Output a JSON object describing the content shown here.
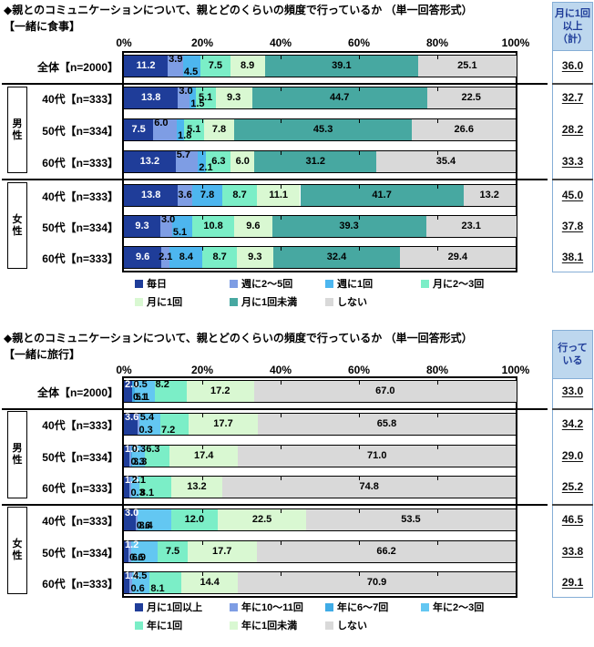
{
  "charts": [
    {
      "title": "◆親とのコミュニケーションについて、親とどのくらいの頻度で行っているか （単一回答形式）",
      "subtitle": "【一緒に食事】",
      "axis": {
        "ticks": [
          "0%",
          "20%",
          "40%",
          "60%",
          "80%",
          "100%"
        ]
      },
      "groups": [
        "男性",
        "女性"
      ],
      "summary": {
        "header_lines": [
          "月に1回",
          "以上",
          "（計）"
        ],
        "values": [
          36.0,
          32.7,
          28.2,
          33.3,
          45.0,
          37.8,
          38.1
        ]
      },
      "chart_data": {
        "type": "bar",
        "stacked": true,
        "orientation": "horizontal",
        "xlim": [
          0,
          100
        ],
        "categories": [
          "全体【n=2000】",
          "40代【n=333】",
          "50代【n=334】",
          "60代【n=333】",
          "40代【n=333】",
          "50代【n=334】",
          "60代【n=333】"
        ],
        "series": [
          {
            "name": "毎日",
            "color": "#1f3d99",
            "values": [
              11.2,
              13.8,
              7.5,
              13.2,
              13.8,
              9.3,
              9.6
            ]
          },
          {
            "name": "週に2～5回",
            "color": "#7e9de4",
            "values": [
              3.9,
              3.0,
              6.0,
              5.7,
              3.6,
              3.0,
              2.1
            ]
          },
          {
            "name": "週に1回",
            "color": "#4db6ef",
            "values": [
              4.5,
              1.5,
              1.8,
              2.1,
              7.8,
              5.1,
              8.4
            ]
          },
          {
            "name": "月に2～3回",
            "color": "#7beec7",
            "values": [
              7.5,
              5.1,
              5.1,
              6.3,
              8.7,
              10.8,
              8.7
            ]
          },
          {
            "name": "月に1回",
            "color": "#d9f8d2",
            "values": [
              8.9,
              9.3,
              7.8,
              6.0,
              11.1,
              9.6,
              9.3
            ]
          },
          {
            "name": "月に1回未満",
            "color": "#47a8a1",
            "values": [
              39.1,
              44.7,
              45.3,
              31.2,
              41.7,
              39.3,
              32.4
            ]
          },
          {
            "name": "しない",
            "color": "#d9d9d9",
            "values": [
              25.1,
              22.5,
              26.6,
              35.4,
              13.2,
              23.1,
              29.4
            ]
          }
        ],
        "label_pos": [
          [
            "in",
            "up",
            "dn",
            "in",
            "in",
            "in",
            "in"
          ],
          [
            "in",
            "up",
            "dn",
            "in",
            "in",
            "in",
            "in"
          ],
          [
            "in",
            "up",
            "dn",
            "in",
            "in",
            "in",
            "in"
          ],
          [
            "in",
            "up",
            "dn",
            "in",
            "in",
            "in",
            "in"
          ],
          [
            "in",
            "in",
            "in",
            "in",
            "in",
            "in",
            "in"
          ],
          [
            "in",
            "up",
            "dn",
            "in",
            "in",
            "in",
            "in"
          ],
          [
            "in",
            "in",
            "in",
            "in",
            "in",
            "in",
            "in"
          ]
        ]
      }
    },
    {
      "title": "◆親とのコミュニケーションについて、親とどのくらいの頻度で行っているか （単一回答形式）",
      "subtitle": "【一緒に旅行】",
      "axis": {
        "ticks": [
          "0%",
          "20%",
          "40%",
          "60%",
          "80%",
          "100%"
        ]
      },
      "groups": [
        "男性",
        "女性"
      ],
      "summary": {
        "header_lines": [
          "行って",
          "いる"
        ],
        "values": [
          33.0,
          34.2,
          29.0,
          25.2,
          46.5,
          33.8,
          29.1
        ]
      },
      "chart_data": {
        "type": "bar",
        "stacked": true,
        "orientation": "horizontal",
        "xlim": [
          0,
          100
        ],
        "categories": [
          "全体【n=2000】",
          "40代【n=333】",
          "50代【n=334】",
          "60代【n=333】",
          "40代【n=333】",
          "50代【n=334】",
          "60代【n=333】"
        ],
        "series": [
          {
            "name": "月に1回以上",
            "color": "#1f3d99",
            "values": [
              2.1,
              3.6,
              1.5,
              1.5,
              3.0,
              1.2,
              1.5
            ]
          },
          {
            "name": "年に10～11回",
            "color": "#7e9de4",
            "values": [
              0.1,
              0.3,
              0.3,
              0.3,
              0.6,
              0.6,
              0.6
            ]
          },
          {
            "name": "年に6～7回",
            "color": "#3fabe6",
            "values": [
              0.5,
              0,
              0.3,
              0,
              0,
              0,
              0
            ]
          },
          {
            "name": "年に2～3回",
            "color": "#63c7f2",
            "values": [
              5.1,
              5.4,
              3.3,
              2.1,
              8.4,
              6.9,
              4.5
            ]
          },
          {
            "name": "年に1回",
            "color": "#7beec7",
            "values": [
              8.2,
              7.2,
              6.3,
              8.1,
              12.0,
              7.5,
              8.1
            ]
          },
          {
            "name": "年に1回未満",
            "color": "#d9f8d2",
            "values": [
              17.2,
              17.7,
              17.4,
              13.2,
              22.5,
              17.7,
              14.4
            ]
          },
          {
            "name": "しない",
            "color": "#d9d9d9",
            "values": [
              67.0,
              65.8,
              71.0,
              74.8,
              53.5,
              66.2,
              70.9
            ]
          }
        ],
        "label_pos": [
          [
            "up",
            "dn",
            "up",
            "dn",
            "up",
            "in",
            "in"
          ],
          [
            "up",
            "dn",
            "none",
            "up",
            "dn",
            "in",
            "in"
          ],
          [
            "up",
            "dn",
            "up",
            "dn",
            "up",
            "in",
            "in"
          ],
          [
            "up",
            "dn",
            "none",
            "up",
            "dn",
            "in",
            "in"
          ],
          [
            "up",
            "dn",
            "none",
            "dn",
            "in",
            "in",
            "in"
          ],
          [
            "up",
            "dn",
            "none",
            "dn",
            "in",
            "in",
            "in"
          ],
          [
            "up",
            "dn",
            "none",
            "up",
            "dn",
            "in",
            "in"
          ]
        ]
      }
    }
  ]
}
